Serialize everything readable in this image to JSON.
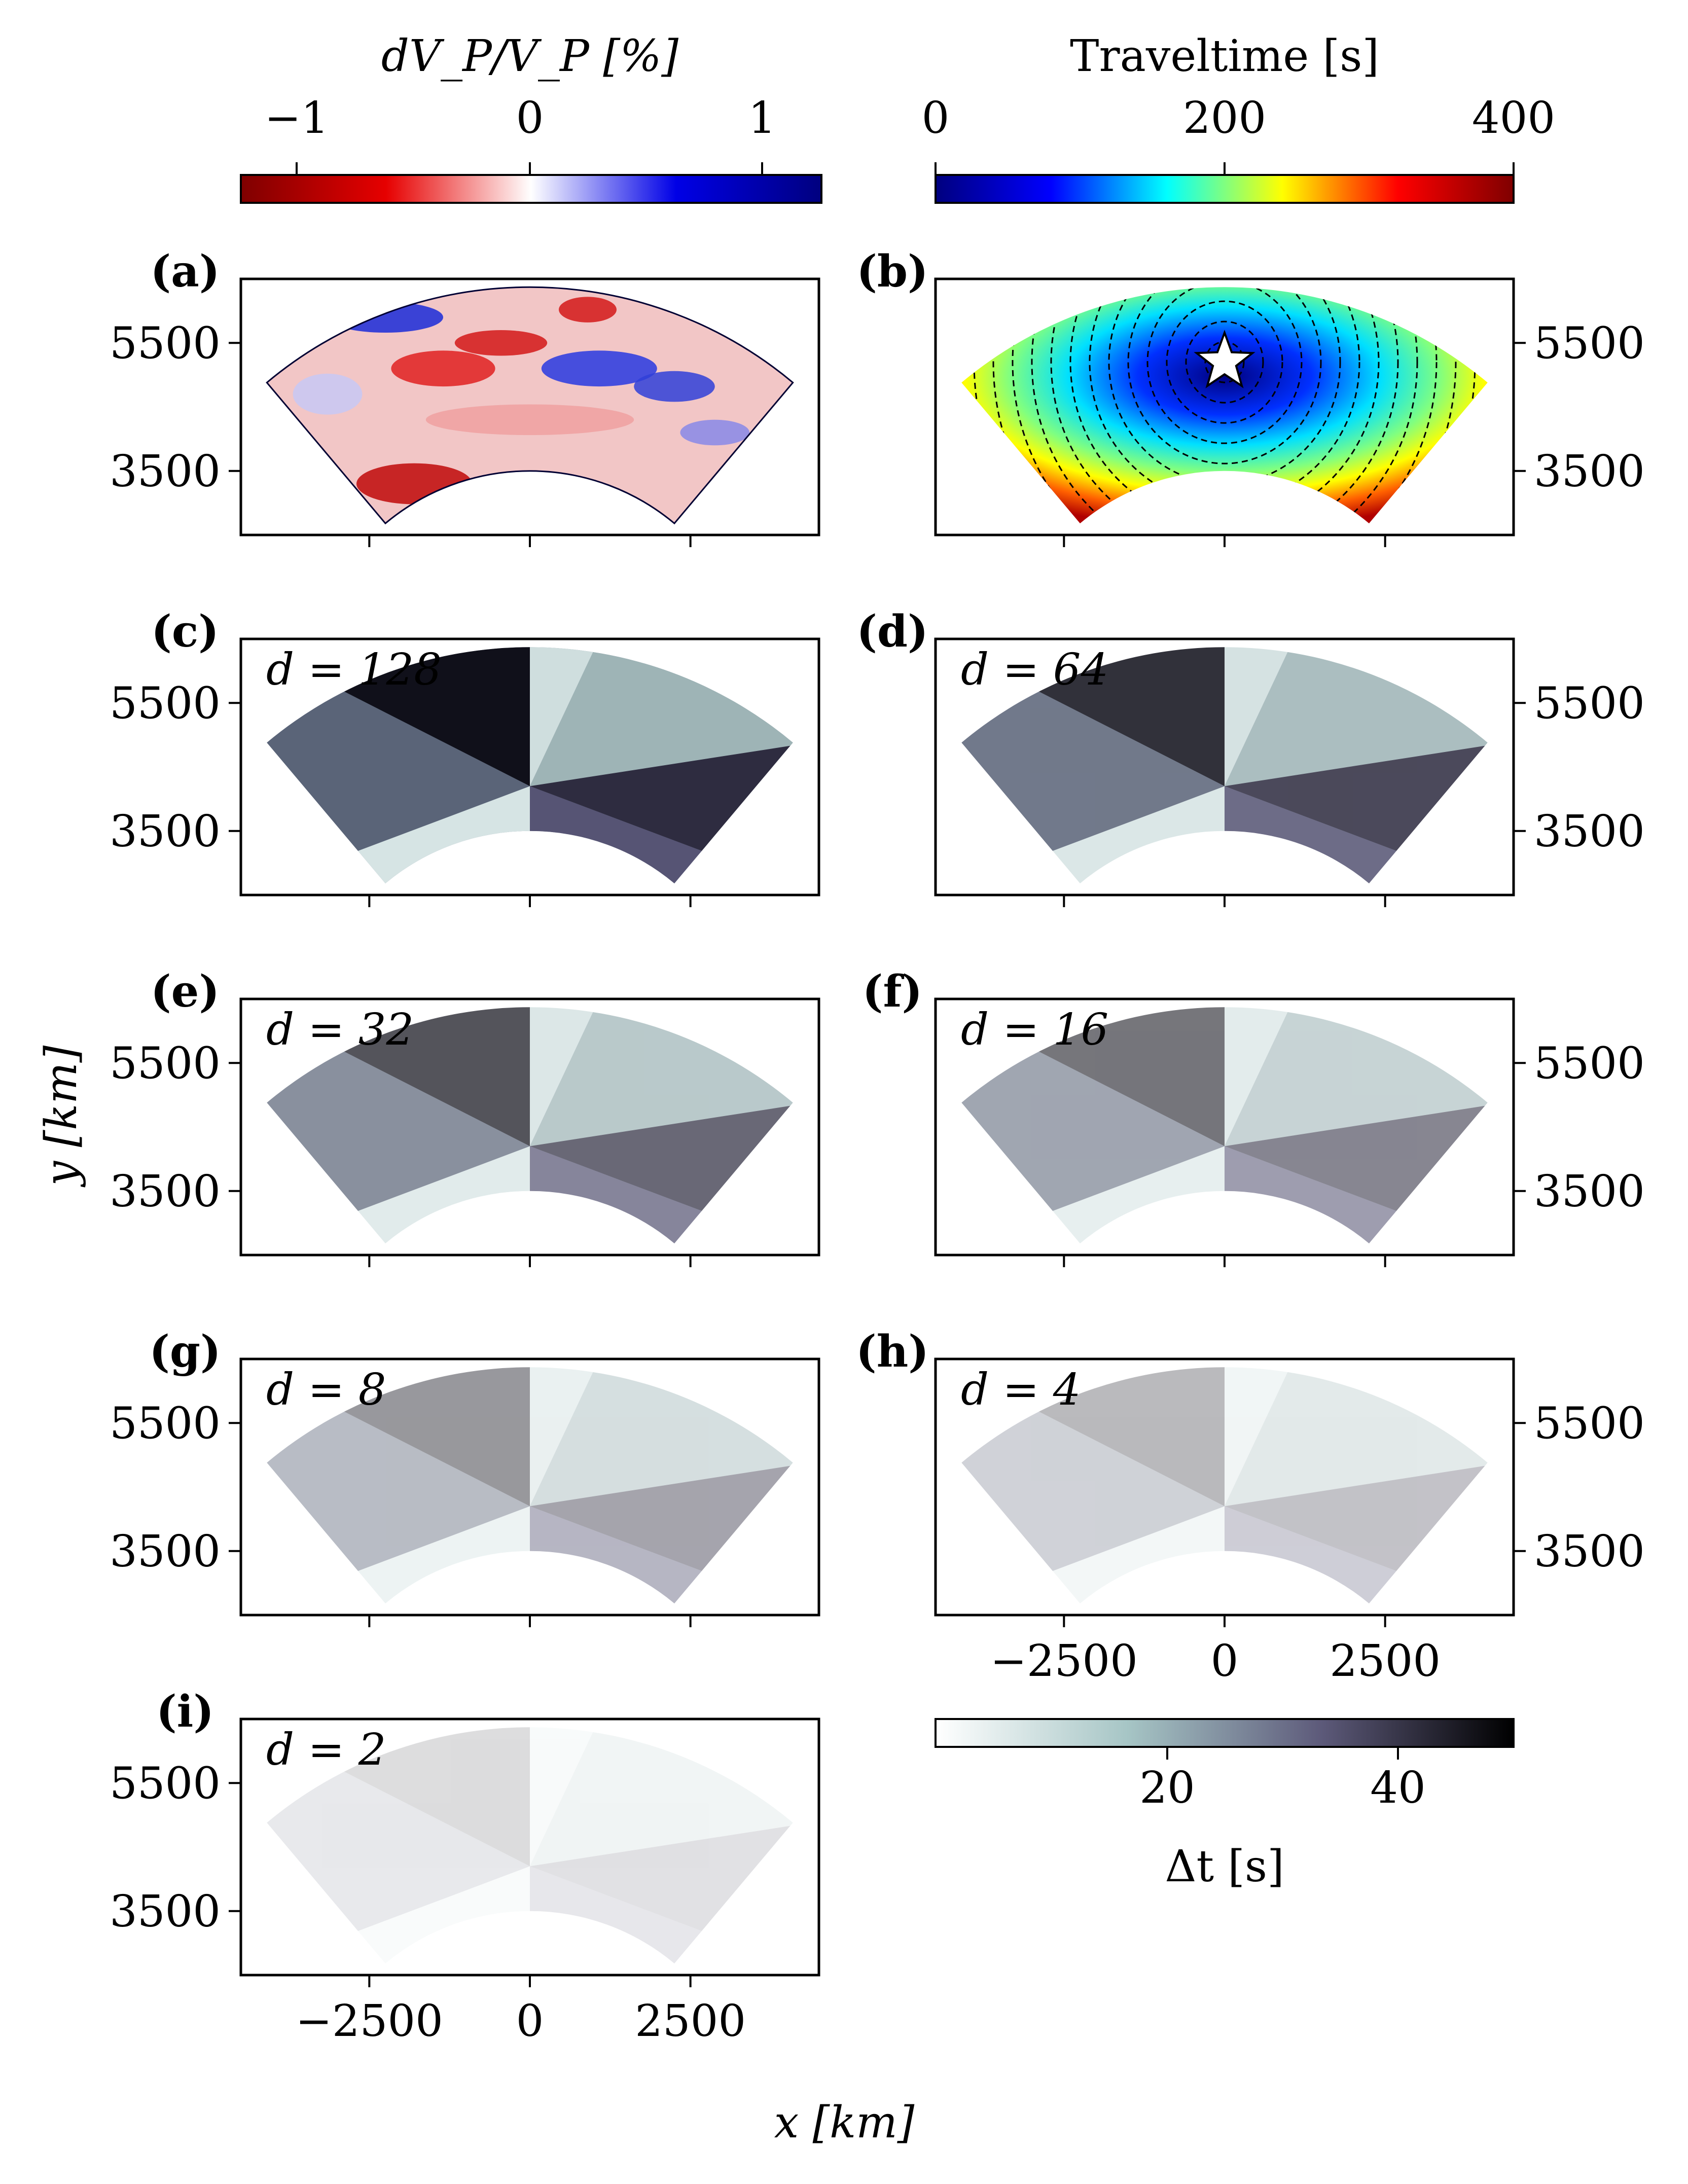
{
  "colorbars": {
    "velocity": {
      "label": "dV_P/V_P [%]",
      "ticks": [
        "−1",
        "0",
        "1"
      ],
      "tick_values": [
        -1,
        0,
        1
      ],
      "range": [
        -1.25,
        1.25
      ],
      "colormap": "seismic_r",
      "colors": [
        "#7f0000",
        "#e60000",
        "#ffffff",
        "#0000e6",
        "#00007f"
      ]
    },
    "traveltime": {
      "label": "Traveltime [s]",
      "ticks": [
        "0",
        "200",
        "400"
      ],
      "tick_values": [
        0,
        200,
        400
      ],
      "range": [
        0,
        400
      ],
      "colormap": "jet",
      "colors": [
        "#00007f",
        "#0000ff",
        "#00ffff",
        "#ffff00",
        "#ff0000",
        "#7f0000"
      ]
    },
    "dt": {
      "label": "Δt [s]",
      "ticks": [
        "20",
        "40"
      ],
      "tick_values": [
        20,
        40
      ],
      "range": [
        0,
        50
      ],
      "colormap": "bone_r",
      "colors": [
        "#ffffff",
        "#a6c5c5",
        "#5d5a7a",
        "#000000"
      ]
    }
  },
  "axes": {
    "xlabel": "x [km]",
    "ylabel": "y [km]",
    "xticks": [
      "−2500",
      "0",
      "2500"
    ],
    "xtick_values": [
      -2500,
      0,
      2500
    ],
    "yticks": [
      "5500",
      "3500"
    ],
    "ytick_values": [
      5500,
      3500
    ],
    "xlim": [
      -4500,
      4500
    ],
    "ylim": [
      2500,
      6500
    ]
  },
  "panels": [
    {
      "id": "a",
      "label": "(a)",
      "kind": "velocity"
    },
    {
      "id": "b",
      "label": "(b)",
      "kind": "traveltime"
    },
    {
      "id": "c",
      "label": "(c)",
      "kind": "dt",
      "d_label": "d = 128",
      "d": 128
    },
    {
      "id": "d",
      "label": "(d)",
      "kind": "dt",
      "d_label": "d = 64",
      "d": 64
    },
    {
      "id": "e",
      "label": "(e)",
      "kind": "dt",
      "d_label": "d = 32",
      "d": 32
    },
    {
      "id": "f",
      "label": "(f)",
      "kind": "dt",
      "d_label": "d = 16",
      "d": 16
    },
    {
      "id": "g",
      "label": "(g)",
      "kind": "dt",
      "d_label": "d = 8",
      "d": 8
    },
    {
      "id": "h",
      "label": "(h)",
      "kind": "dt",
      "d_label": "d = 4",
      "d": 4
    },
    {
      "id": "i",
      "label": "(i)",
      "kind": "dt",
      "d_label": "d = 2",
      "d": 2
    }
  ],
  "chart_data": [
    {
      "type": "heatmap",
      "panel": "(a)",
      "description_field": "P-wave velocity perturbation on an annular sector",
      "colorbar_label": "dV_P/V_P [%]",
      "xlim": [
        -4500,
        4500
      ],
      "ylim": [
        2500,
        6500
      ],
      "xticks": [
        -2500,
        0,
        2500
      ],
      "yticks": [
        3500,
        5500
      ],
      "value_range": [
        -1.25,
        1.25
      ]
    },
    {
      "type": "heatmap",
      "panel": "(b)",
      "colorbar_label": "Traveltime [s]",
      "value_range": [
        0,
        400
      ],
      "source_marker": "star",
      "xlim": [
        -4500,
        4500
      ],
      "ylim": [
        2500,
        6500
      ]
    },
    {
      "type": "heatmap",
      "panels": [
        "(c)",
        "(d)",
        "(e)",
        "(f)",
        "(g)",
        "(h)",
        "(i)"
      ],
      "d": [
        128,
        64,
        32,
        16,
        8,
        4,
        2
      ],
      "colorbar_label": "Δt [s]",
      "value_range": [
        0,
        50
      ],
      "colorbar_ticks": [
        20,
        40
      ],
      "xlim": [
        -4500,
        4500
      ],
      "ylim": [
        2500,
        6500
      ]
    }
  ]
}
